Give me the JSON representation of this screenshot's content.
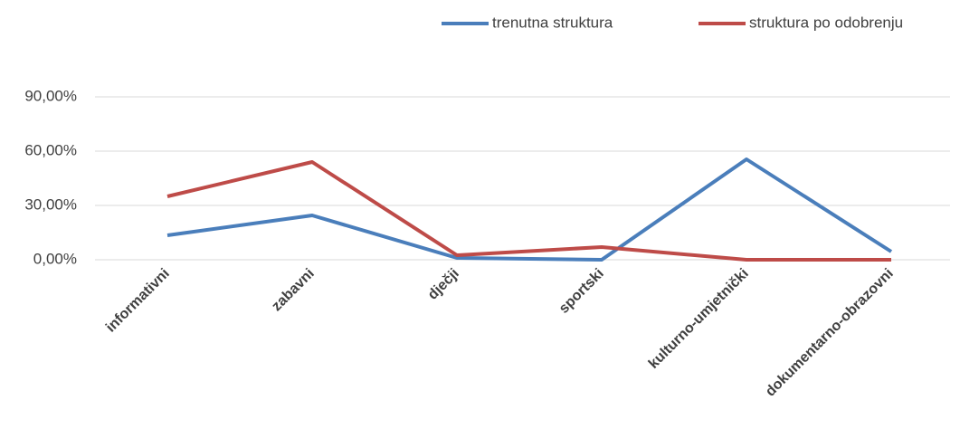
{
  "chart_data": {
    "type": "line",
    "categories": [
      "informativni",
      "zabavni",
      "dječji",
      "sportski",
      "kulturno-umjetnički",
      "dokumentarno-obrazovni"
    ],
    "series": [
      {
        "name": "trenutna struktura",
        "color": "#4a7ebb",
        "values": [
          13.5,
          24.5,
          1,
          0,
          55.5,
          4.5
        ]
      },
      {
        "name": "struktura po odobrenju",
        "color": "#be4b48",
        "values": [
          35,
          54,
          2.5,
          7,
          0,
          0
        ]
      }
    ],
    "ylim": [
      0,
      90
    ],
    "yticks": [
      {
        "value": 0,
        "label": "0,00%"
      },
      {
        "value": 30,
        "label": "30,00%"
      },
      {
        "value": 60,
        "label": "60,00%"
      },
      {
        "value": 90,
        "label": "90,00%"
      }
    ],
    "grid": true,
    "legend": "top-right"
  }
}
